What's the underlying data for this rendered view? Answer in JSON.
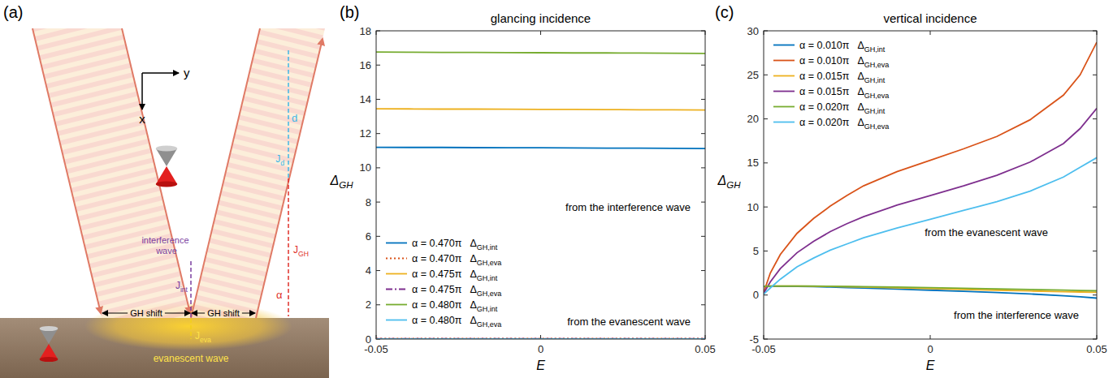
{
  "diagram": {
    "panel_label": "(a)",
    "axis_x": "x",
    "axis_y": "y",
    "interference_label": "interference wave",
    "evanescent_label": "evanescent wave",
    "gh_shift_labels": [
      "GH shift",
      "GH shift"
    ],
    "current_labels": {
      "int": "Jint",
      "eva": "Jeva",
      "d": "Jd",
      "gh": "JGH"
    },
    "distance_label": "d",
    "angle_label": "α"
  },
  "chart_data": [
    {
      "type": "line",
      "panel_label": "(b)",
      "title": "glancing incidence",
      "x_label": "E",
      "y_label": "ΔGH",
      "xlim": [
        -0.05,
        0.05
      ],
      "xticks": [
        -0.05,
        0,
        0.05
      ],
      "ylim": [
        0,
        18
      ],
      "yticks": [
        0,
        2,
        4,
        6,
        8,
        10,
        12,
        14,
        16,
        18
      ],
      "grid": false,
      "legend": "lower left",
      "x": [
        -0.05,
        -0.04,
        -0.03,
        -0.02,
        -0.01,
        0,
        0.01,
        0.02,
        0.03,
        0.04,
        0.05
      ],
      "series": [
        {
          "name": "α = 0.470π ΔGH,int",
          "color": "#0072BD",
          "line_style": "solid",
          "values": [
            11.2,
            11.19,
            11.19,
            11.18,
            11.17,
            11.17,
            11.16,
            11.15,
            11.15,
            11.14,
            11.13
          ]
        },
        {
          "name": "α = 0.470π ΔGH,eva",
          "color": "#D95319",
          "line_style": "dotted",
          "values": [
            0.03,
            0.03,
            0.03,
            0.03,
            0.03,
            0.03,
            0.03,
            0.03,
            0.03,
            0.03,
            0.03
          ]
        },
        {
          "name": "α = 0.475π ΔGH,int",
          "color": "#EDB120",
          "line_style": "solid",
          "values": [
            13.45,
            13.44,
            13.43,
            13.43,
            13.42,
            13.41,
            13.41,
            13.4,
            13.39,
            13.39,
            13.38
          ]
        },
        {
          "name": "α = 0.475π ΔGH,eva",
          "color": "#7E2F8E",
          "line_style": "dashdot",
          "values": [
            0.02,
            0.02,
            0.02,
            0.02,
            0.02,
            0.02,
            0.02,
            0.02,
            0.02,
            0.02,
            0.02
          ]
        },
        {
          "name": "α = 0.480π ΔGH,int",
          "color": "#77AC30",
          "line_style": "solid",
          "values": [
            16.76,
            16.75,
            16.74,
            16.74,
            16.73,
            16.72,
            16.71,
            16.71,
            16.7,
            16.69,
            16.68
          ]
        },
        {
          "name": "α = 0.480π ΔGH,eva",
          "color": "#4DBEEE",
          "line_style": "solid",
          "values": [
            0.01,
            0.01,
            0.01,
            0.01,
            0.01,
            0.01,
            0.01,
            0.01,
            0.01,
            0.01,
            0.01
          ]
        }
      ],
      "annotations": [
        "from the interference wave",
        "from the evanescent wave"
      ]
    },
    {
      "type": "line",
      "panel_label": "(c)",
      "title": "vertical incidence",
      "x_label": "E",
      "y_label": "ΔGH",
      "xlim": [
        -0.05,
        0.05
      ],
      "xticks": [
        -0.05,
        0,
        0.05
      ],
      "ylim": [
        -5,
        30
      ],
      "yticks": [
        -5,
        0,
        5,
        10,
        15,
        20,
        25,
        30
      ],
      "grid": false,
      "legend": "upper left",
      "x": [
        -0.05,
        -0.048,
        -0.045,
        -0.04,
        -0.035,
        -0.03,
        -0.025,
        -0.02,
        -0.01,
        0,
        0.01,
        0.02,
        0.03,
        0.04,
        0.045,
        0.05
      ],
      "series": [
        {
          "name": "α = 0.010π ΔGH,int",
          "color": "#0072BD",
          "line_style": "solid",
          "values": [
            0.95,
            0.98,
            1.0,
            0.98,
            0.95,
            0.9,
            0.85,
            0.8,
            0.68,
            0.55,
            0.42,
            0.28,
            0.12,
            -0.08,
            -0.2,
            -0.35
          ]
        },
        {
          "name": "α = 0.010π ΔGH,eva",
          "color": "#D95319",
          "line_style": "solid",
          "values": [
            0.3,
            2.5,
            4.6,
            7.0,
            8.7,
            10.1,
            11.3,
            12.4,
            14.0,
            15.3,
            16.6,
            18.0,
            19.9,
            22.7,
            25.0,
            28.7
          ]
        },
        {
          "name": "α = 0.015π ΔGH,int",
          "color": "#EDB120",
          "line_style": "solid",
          "values": [
            1.0,
            1.02,
            1.03,
            1.02,
            1.0,
            0.97,
            0.94,
            0.9,
            0.82,
            0.73,
            0.64,
            0.55,
            0.46,
            0.38,
            0.34,
            0.3
          ]
        },
        {
          "name": "α = 0.015π ΔGH,eva",
          "color": "#7E2F8E",
          "line_style": "solid",
          "values": [
            0.2,
            1.5,
            3.0,
            4.8,
            6.1,
            7.2,
            8.1,
            8.9,
            10.2,
            11.3,
            12.4,
            13.6,
            15.1,
            17.2,
            18.9,
            21.2
          ]
        },
        {
          "name": "α = 0.020π ΔGH,int",
          "color": "#77AC30",
          "line_style": "solid",
          "values": [
            1.0,
            1.02,
            1.03,
            1.03,
            1.02,
            1.0,
            0.98,
            0.96,
            0.9,
            0.84,
            0.77,
            0.7,
            0.63,
            0.56,
            0.52,
            0.48
          ]
        },
        {
          "name": "α = 0.020π ΔGH,eva",
          "color": "#4DBEEE",
          "line_style": "solid",
          "values": [
            0.1,
            0.8,
            1.8,
            3.2,
            4.2,
            5.1,
            5.8,
            6.5,
            7.6,
            8.6,
            9.6,
            10.6,
            11.8,
            13.4,
            14.5,
            15.6
          ]
        }
      ],
      "annotations": [
        "from the evanescent wave",
        "from the interference wave"
      ]
    }
  ]
}
